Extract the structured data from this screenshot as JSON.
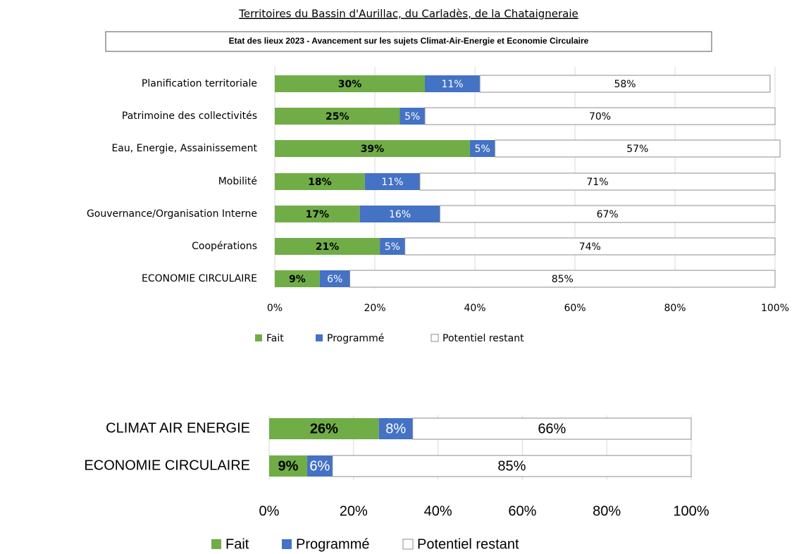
{
  "chart_data": [
    {
      "type": "stacked_bar_horizontal",
      "title": "Territoires du Bassin d'Aurillac, du Carladès, de la Chataigneraie",
      "subtitle": "Etat des lieux 2023 - Avancement sur les sujets Climat-Air-Energie et Economie Circulaire",
      "categories": [
        "Planification territoriale",
        "Patrimoine des collectivités",
        "Eau, Energie, Assainissement",
        "Mobilité",
        "Gouvernance/Organisation Interne",
        "Coopérations",
        "ECONOMIE CIRCULAIRE"
      ],
      "series": [
        {
          "name": "Fait",
          "color": "#70ad47",
          "values": [
            30,
            25,
            39,
            18,
            17,
            21,
            9
          ],
          "value_labels": [
            "30%",
            "25%",
            "39%",
            "18%",
            "17%",
            "21%",
            "9%"
          ]
        },
        {
          "name": "Programmé",
          "color": "#4472c4",
          "values": [
            11,
            5,
            5,
            11,
            16,
            5,
            6
          ],
          "value_labels": [
            "11%",
            "5%",
            "5%",
            "11%",
            "16%",
            "5%",
            "6%"
          ]
        },
        {
          "name": "Potentiel restant",
          "color": "#ffffff",
          "values": [
            58,
            70,
            57,
            71,
            67,
            74,
            85
          ],
          "value_labels": [
            "58%",
            "70%",
            "57%",
            "71%",
            "67%",
            "74%",
            "85%"
          ]
        }
      ],
      "xlim": [
        0,
        100
      ],
      "xticks": [
        {
          "value": 0,
          "label": "0%"
        },
        {
          "value": 20,
          "label": "20%"
        },
        {
          "value": 40,
          "label": "40%"
        },
        {
          "value": 60,
          "label": "60%"
        },
        {
          "value": 80,
          "label": "80%"
        },
        {
          "value": 100,
          "label": "100%"
        }
      ],
      "grid": true,
      "legend": "bottom"
    },
    {
      "type": "stacked_bar_horizontal",
      "categories": [
        "CLIMAT AIR ENERGIE",
        "ECONOMIE CIRCULAIRE"
      ],
      "series": [
        {
          "name": "Fait",
          "color": "#70ad47",
          "values": [
            26,
            9
          ],
          "value_labels": [
            "26%",
            "9%"
          ]
        },
        {
          "name": "Programmé",
          "color": "#4472c4",
          "values": [
            8,
            6
          ],
          "value_labels": [
            "8%",
            "6%"
          ]
        },
        {
          "name": "Potentiel restant",
          "color": "#ffffff",
          "values": [
            66,
            85
          ],
          "value_labels": [
            "66%",
            "85%"
          ]
        }
      ],
      "xlim": [
        0,
        100
      ],
      "xticks": [
        {
          "value": 0,
          "label": "0%"
        },
        {
          "value": 20,
          "label": "20%"
        },
        {
          "value": 40,
          "label": "40%"
        },
        {
          "value": 60,
          "label": "60%"
        },
        {
          "value": 80,
          "label": "80%"
        },
        {
          "value": 100,
          "label": "100%"
        }
      ],
      "grid": true,
      "legend": "bottom"
    }
  ]
}
